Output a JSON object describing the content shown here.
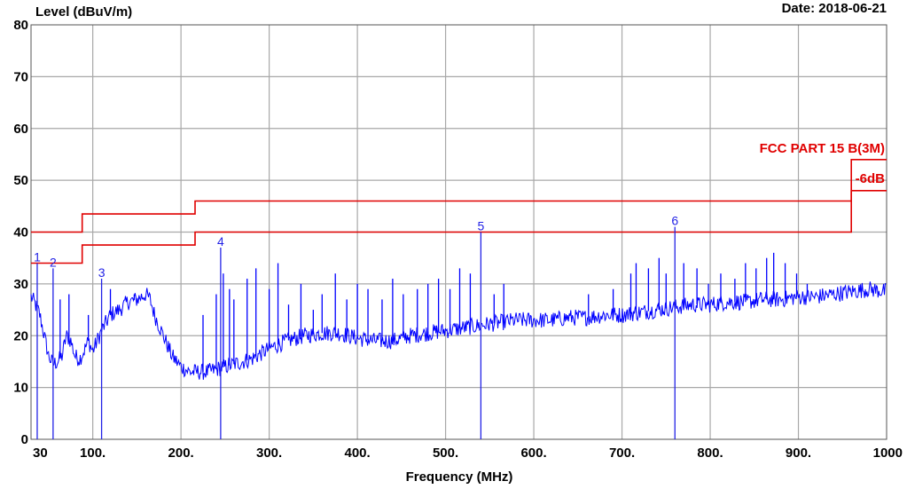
{
  "chart_data": {
    "type": "line",
    "ylabel": "Level (dBuV/m)",
    "xlabel": "Frequency (MHz)",
    "date_text": "Date: 2018-06-21",
    "xlim": [
      30,
      1000
    ],
    "ylim": [
      0,
      80
    ],
    "y_ticks": [
      0,
      10,
      20,
      30,
      40,
      50,
      60,
      70,
      80
    ],
    "x_ticks": [
      {
        "value": 30,
        "label": "30"
      },
      {
        "value": 100,
        "label": "100."
      },
      {
        "value": 200,
        "label": "200."
      },
      {
        "value": 300,
        "label": "300."
      },
      {
        "value": 400,
        "label": "400."
      },
      {
        "value": 500,
        "label": "500."
      },
      {
        "value": 600,
        "label": "600."
      },
      {
        "value": 700,
        "label": "700."
      },
      {
        "value": 800,
        "label": "800."
      },
      {
        "value": 900,
        "label": "900."
      },
      {
        "value": 1000,
        "label": "1000"
      }
    ],
    "grid": true,
    "limit_lines": [
      {
        "name": "FCC PART 15 B(3M)",
        "color": "#e00000",
        "points": [
          [
            30,
            40
          ],
          [
            88,
            40
          ],
          [
            88,
            43.5
          ],
          [
            216,
            43.5
          ],
          [
            216,
            46
          ],
          [
            960,
            46
          ],
          [
            960,
            54
          ],
          [
            1000,
            54
          ]
        ]
      },
      {
        "name": "-6dB",
        "color": "#e00000",
        "points": [
          [
            30,
            34
          ],
          [
            88,
            34
          ],
          [
            88,
            37.5
          ],
          [
            216,
            37.5
          ],
          [
            216,
            40
          ],
          [
            960,
            40
          ],
          [
            960,
            48
          ],
          [
            1000,
            48
          ]
        ]
      }
    ],
    "trace": {
      "color": "#0000ff",
      "points": [
        [
          30,
          27.5
        ],
        [
          35,
          26
        ],
        [
          40,
          24
        ],
        [
          45,
          20
        ],
        [
          50,
          16
        ],
        [
          55,
          14.5
        ],
        [
          60,
          15
        ],
        [
          65,
          16
        ],
        [
          70,
          20
        ],
        [
          75,
          19
        ],
        [
          80,
          16
        ],
        [
          85,
          15.5
        ],
        [
          90,
          17
        ],
        [
          95,
          19
        ],
        [
          100,
          17
        ],
        [
          110,
          21
        ],
        [
          120,
          24
        ],
        [
          130,
          25
        ],
        [
          140,
          26.5
        ],
        [
          150,
          27
        ],
        [
          160,
          28
        ],
        [
          165,
          27
        ],
        [
          170,
          24
        ],
        [
          180,
          20
        ],
        [
          190,
          16
        ],
        [
          200,
          14
        ],
        [
          210,
          13
        ],
        [
          220,
          13
        ],
        [
          230,
          13
        ],
        [
          240,
          13.5
        ],
        [
          250,
          14
        ],
        [
          260,
          14.5
        ],
        [
          270,
          15
        ],
        [
          280,
          15.5
        ],
        [
          290,
          16.5
        ],
        [
          300,
          17.5
        ],
        [
          320,
          19
        ],
        [
          340,
          20
        ],
        [
          360,
          20.5
        ],
        [
          380,
          20.5
        ],
        [
          400,
          19.5
        ],
        [
          420,
          19
        ],
        [
          440,
          19
        ],
        [
          460,
          20
        ],
        [
          480,
          20.5
        ],
        [
          500,
          21
        ],
        [
          520,
          21.5
        ],
        [
          540,
          22
        ],
        [
          560,
          22.5
        ],
        [
          580,
          23
        ],
        [
          600,
          23
        ],
        [
          620,
          23
        ],
        [
          640,
          23.5
        ],
        [
          660,
          23.5
        ],
        [
          680,
          24
        ],
        [
          700,
          24
        ],
        [
          720,
          24.5
        ],
        [
          740,
          25
        ],
        [
          760,
          25.5
        ],
        [
          780,
          26
        ],
        [
          800,
          26
        ],
        [
          820,
          26.5
        ],
        [
          840,
          26.5
        ],
        [
          860,
          27
        ],
        [
          880,
          27
        ],
        [
          900,
          27.5
        ],
        [
          920,
          27.5
        ],
        [
          940,
          28
        ],
        [
          960,
          28.5
        ],
        [
          980,
          29
        ],
        [
          1000,
          28.5
        ]
      ]
    },
    "spikes": [
      [
        63,
        27
      ],
      [
        73,
        28
      ],
      [
        95,
        24
      ],
      [
        120,
        29
      ],
      [
        147,
        28
      ],
      [
        225,
        24
      ],
      [
        240,
        28
      ],
      [
        248,
        32
      ],
      [
        255,
        29
      ],
      [
        260,
        27
      ],
      [
        275,
        31
      ],
      [
        285,
        33
      ],
      [
        300,
        29
      ],
      [
        310,
        34
      ],
      [
        322,
        26
      ],
      [
        336,
        30
      ],
      [
        350,
        25
      ],
      [
        360,
        28
      ],
      [
        375,
        32
      ],
      [
        388,
        27
      ],
      [
        400,
        30
      ],
      [
        412,
        29
      ],
      [
        428,
        27
      ],
      [
        440,
        31
      ],
      [
        452,
        28
      ],
      [
        468,
        29
      ],
      [
        480,
        30
      ],
      [
        492,
        31
      ],
      [
        505,
        29
      ],
      [
        516,
        33
      ],
      [
        528,
        32
      ],
      [
        555,
        28
      ],
      [
        566,
        30
      ],
      [
        662,
        28
      ],
      [
        690,
        29
      ],
      [
        710,
        32
      ],
      [
        716,
        34
      ],
      [
        730,
        33
      ],
      [
        742,
        35
      ],
      [
        750,
        32
      ],
      [
        770,
        34
      ],
      [
        785,
        33
      ],
      [
        798,
        30
      ],
      [
        812,
        32
      ],
      [
        828,
        31
      ],
      [
        840,
        34
      ],
      [
        852,
        33
      ],
      [
        864,
        35
      ],
      [
        872,
        36
      ],
      [
        885,
        34
      ],
      [
        898,
        32
      ],
      [
        910,
        30
      ]
    ],
    "markers": [
      {
        "label": "1",
        "freq": 37,
        "level": 34
      },
      {
        "label": "2",
        "freq": 55,
        "level": 33
      },
      {
        "label": "3",
        "freq": 110,
        "level": 31
      },
      {
        "label": "4",
        "freq": 245,
        "level": 37
      },
      {
        "label": "5",
        "freq": 540,
        "level": 40
      },
      {
        "label": "6",
        "freq": 760,
        "level": 41
      }
    ]
  }
}
